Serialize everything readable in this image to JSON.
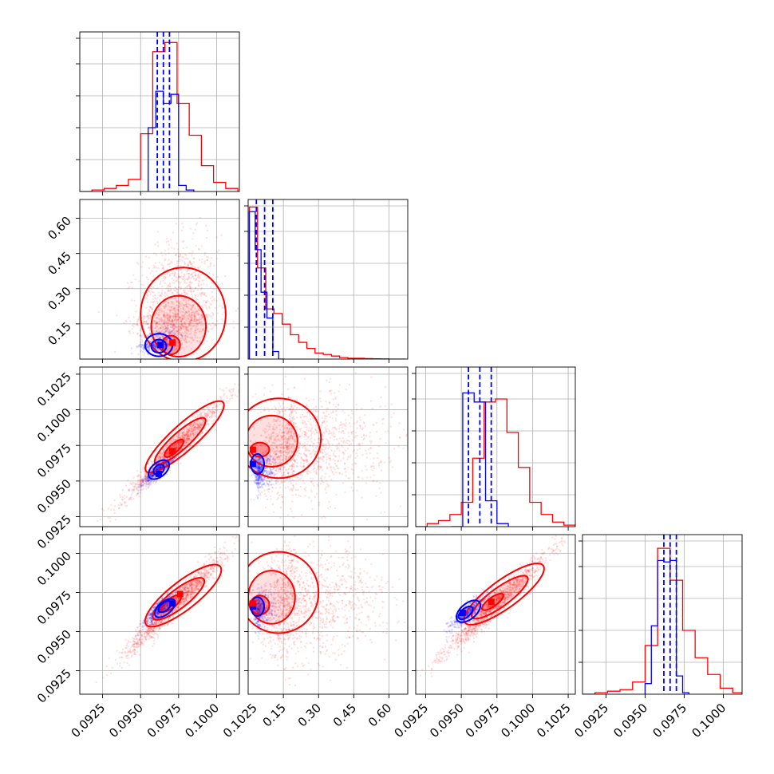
{
  "chart_data": {
    "type": "corner",
    "series_colors": [
      "#0000ff",
      "#ff0000"
    ],
    "grid": true,
    "parameters": [
      {
        "range": [
          0.091,
          0.1015
        ],
        "ticks": [
          0.0925,
          0.095,
          0.0975,
          0.1
        ],
        "tick_labels": [
          "0.0925",
          "0.0950",
          "0.0975",
          "0.1000"
        ]
      },
      {
        "range": [
          0.0,
          0.68
        ],
        "ticks": [
          0.15,
          0.3,
          0.45,
          0.6
        ],
        "tick_labels": [
          "0.15",
          "0.30",
          "0.45",
          "0.60"
        ]
      },
      {
        "range": [
          0.0918,
          0.103
        ],
        "ticks": [
          0.0925,
          0.095,
          0.0975,
          0.1,
          0.1025
        ],
        "tick_labels": [
          "0.0925",
          "0.0950",
          "0.0975",
          "0.1000",
          "0.1025"
        ]
      },
      {
        "range": [
          0.091,
          0.1012
        ],
        "ticks": [
          0.0925,
          0.095,
          0.0975,
          0.1
        ],
        "tick_labels": [
          "0.0925",
          "0.0950",
          "0.0975",
          "0.1000"
        ]
      }
    ],
    "bottom_axis_ticks": [
      {
        "ticks": [
          0.0925,
          0.095,
          0.0975,
          0.1,
          0.1025
        ],
        "tick_labels": [
          "0.0925",
          "0.0950",
          "0.0975",
          "0.1000",
          "0.1025"
        ]
      },
      {
        "ticks": [
          0.15,
          0.3,
          0.45,
          0.6
        ],
        "tick_labels": [
          "0.15",
          "0.30",
          "0.45",
          "0.60"
        ]
      },
      {
        "ticks": [
          0.0925,
          0.095,
          0.0975,
          0.1,
          0.1025
        ],
        "tick_labels": [
          "0.0925",
          "0.0950",
          "0.0975",
          "0.1000",
          "0.1025"
        ]
      },
      {
        "ticks": [
          0.0925,
          0.095,
          0.0975,
          0.1
        ],
        "tick_labels": [
          "0.0925",
          "0.0950",
          "0.0975",
          "0.1000"
        ]
      }
    ],
    "histograms": [
      {
        "param": 0,
        "blue": {
          "edges": [
            0.0955,
            0.096,
            0.0965,
            0.097,
            0.0975,
            0.098,
            0.0985
          ],
          "counts": [
            0.42,
            0.66,
            0.58,
            0.64,
            0.04,
            0.01
          ]
        },
        "red": {
          "edges": [
            0.091,
            0.0918,
            0.0926,
            0.0934,
            0.0942,
            0.095,
            0.0958,
            0.0966,
            0.0974,
            0.0982,
            0.099,
            0.0998,
            0.1006,
            0.1014
          ],
          "counts": [
            0.0,
            0.01,
            0.02,
            0.04,
            0.08,
            0.38,
            0.92,
            0.98,
            0.58,
            0.37,
            0.17,
            0.06,
            0.02
          ]
        },
        "blue_quantiles": [
          0.0961,
          0.0965,
          0.0969
        ],
        "ymax": 1.0
      },
      {
        "param": 1,
        "blue": {
          "edges": [
            0.005,
            0.03,
            0.055,
            0.08,
            0.105,
            0.13,
            0.155
          ],
          "counts": [
            0.97,
            0.72,
            0.44,
            0.27,
            0.05,
            0.0
          ]
        },
        "red": {
          "edges": [
            0.005,
            0.04,
            0.075,
            0.11,
            0.145,
            0.18,
            0.215,
            0.25,
            0.285,
            0.32,
            0.355,
            0.39,
            0.425,
            0.46,
            0.495,
            0.53,
            0.565,
            0.6,
            0.635,
            0.67
          ],
          "counts": [
            1.0,
            0.6,
            0.33,
            0.3,
            0.23,
            0.16,
            0.11,
            0.07,
            0.04,
            0.03,
            0.02,
            0.01,
            0.005,
            0.005,
            0.003,
            0.002,
            0.001,
            0.0,
            0.0
          ]
        },
        "blue_quantiles": [
          0.035,
          0.07,
          0.105
        ],
        "ymax": 1.0
      },
      {
        "param": 2,
        "blue": {
          "edges": [
            0.0943,
            0.0951,
            0.0959,
            0.0967,
            0.0975,
            0.0983
          ],
          "counts": [
            0.0,
            0.88,
            0.82,
            0.17,
            0.02
          ]
        },
        "red": {
          "edges": [
            0.0918,
            0.0926,
            0.0934,
            0.0942,
            0.095,
            0.0958,
            0.0966,
            0.0974,
            0.0982,
            0.099,
            0.0998,
            0.1006,
            0.1014,
            0.1022,
            0.103
          ],
          "counts": [
            0.0,
            0.02,
            0.04,
            0.08,
            0.16,
            0.45,
            0.82,
            0.84,
            0.62,
            0.39,
            0.16,
            0.08,
            0.03,
            0.01
          ]
        },
        "blue_quantiles": [
          0.0955,
          0.0963,
          0.0971
        ],
        "ymax": 1.0
      },
      {
        "param": 3,
        "blue": {
          "edges": [
            0.095,
            0.0954,
            0.0958,
            0.0962,
            0.0966,
            0.097,
            0.0974,
            0.0978
          ],
          "counts": [
            0.07,
            0.45,
            0.88,
            0.87,
            0.88,
            0.12,
            0.01
          ]
        },
        "red": {
          "edges": [
            0.091,
            0.0918,
            0.0926,
            0.0934,
            0.0942,
            0.095,
            0.0958,
            0.0966,
            0.0974,
            0.0982,
            0.099,
            0.0998,
            0.1006,
            0.1012
          ],
          "counts": [
            0.0,
            0.01,
            0.02,
            0.03,
            0.08,
            0.32,
            0.96,
            0.75,
            0.42,
            0.24,
            0.13,
            0.04,
            0.01
          ]
        },
        "blue_quantiles": [
          0.0962,
          0.0966,
          0.097
        ],
        "ymax": 1.0
      }
    ],
    "scatter_panels": [
      {
        "x_param": 0,
        "y_param": 1,
        "blue": {
          "mean": [
            0.0962,
            0.065
          ],
          "sd": [
            0.0006,
            0.025
          ],
          "corr": 0.35,
          "n": 500
        },
        "red": {
          "mean": [
            0.0975,
            0.19
          ],
          "sd": [
            0.0013,
            0.11
          ],
          "corr": 0.1,
          "n": 1400
        },
        "contours": {
          "blue": [
            {
              "center": [
                0.0962,
                0.055
              ],
              "radius": [
                0.0005,
                0.028
              ],
              "angle": 0
            },
            {
              "center": [
                0.0962,
                0.06
              ],
              "radius": [
                0.0009,
                0.048
              ],
              "angle": 0
            }
          ],
          "red": [
            {
              "center": [
                0.097,
                0.06
              ],
              "radius": [
                0.0006,
                0.04
              ],
              "angle": 0
            },
            {
              "center": [
                0.0975,
                0.14
              ],
              "radius": [
                0.0018,
                0.13
              ],
              "angle": 0
            },
            {
              "center": [
                0.0978,
                0.19
              ],
              "radius": [
                0.0028,
                0.2
              ],
              "angle": 0
            }
          ]
        },
        "blue_peak": [
          0.0963,
          0.06
        ],
        "red_peak": [
          0.0971,
          0.07
        ]
      },
      {
        "x_param": 0,
        "y_param": 2,
        "blue": {
          "mean": [
            0.0962,
            0.0958
          ],
          "sd": [
            0.0005,
            0.0005
          ],
          "corr": 0.9,
          "n": 600
        },
        "red": {
          "mean": [
            0.0973,
            0.0973
          ],
          "sd": [
            0.0016,
            0.0017
          ],
          "corr": 0.97,
          "n": 1400
        },
        "contours": {
          "blue": [
            {
              "center": [
                0.0962,
                0.0958
              ],
              "radius": [
                0.0004,
                0.0003
              ],
              "angle": 40
            },
            {
              "center": [
                0.0962,
                0.0958
              ],
              "radius": [
                0.0008,
                0.0005
              ],
              "angle": 40
            }
          ],
          "red": [
            {
              "center": [
                0.0972,
                0.0973
              ],
              "radius": [
                0.0008,
                0.0003
              ],
              "angle": 42
            },
            {
              "center": [
                0.0976,
                0.0978
              ],
              "radius": [
                0.0022,
                0.0006
              ],
              "angle": 42
            },
            {
              "center": [
                0.0979,
                0.0981
              ],
              "radius": [
                0.0034,
                0.0009
              ],
              "angle": 42
            }
          ]
        },
        "blue_peak": [
          0.0962,
          0.0955
        ],
        "red_peak": [
          0.0971,
          0.0971
        ]
      },
      {
        "x_param": 1,
        "y_param": 2,
        "blue": {
          "mean": [
            0.05,
            0.0957
          ],
          "sd": [
            0.02,
            0.0006
          ],
          "corr": 0.1,
          "n": 500
        },
        "red": {
          "mean": [
            0.2,
            0.0975
          ],
          "sd": [
            0.12,
            0.0018
          ],
          "corr": 0.05,
          "n": 1400
        },
        "contours": {
          "blue": [
            {
              "center": [
                0.04,
                0.0962
              ],
              "radius": [
                0.028,
                0.0007
              ],
              "angle": 0
            }
          ],
          "red": [
            {
              "center": [
                0.05,
                0.0972
              ],
              "radius": [
                0.04,
                0.0005
              ],
              "angle": 0
            },
            {
              "center": [
                0.1,
                0.0978
              ],
              "radius": [
                0.11,
                0.0018
              ],
              "angle": 0
            },
            {
              "center": [
                0.13,
                0.098
              ],
              "radius": [
                0.18,
                0.0028
              ],
              "angle": 0
            }
          ]
        },
        "blue_peak": [
          0.02,
          0.0962
        ],
        "red_peak": [
          0.02,
          0.0972
        ]
      },
      {
        "x_param": 0,
        "y_param": 3,
        "blue": {
          "mean": [
            0.0963,
            0.0965
          ],
          "sd": [
            0.0005,
            0.0005
          ],
          "corr": 0.85,
          "n": 600
        },
        "red": {
          "mean": [
            0.0973,
            0.0968
          ],
          "sd": [
            0.0016,
            0.0016
          ],
          "corr": 0.97,
          "n": 1400
        },
        "contours": {
          "blue": [
            {
              "center": [
                0.0966,
                0.0966
              ],
              "radius": [
                0.0005,
                0.00025
              ],
              "angle": 40
            },
            {
              "center": [
                0.0966,
                0.0965
              ],
              "radius": [
                0.0008,
                0.0004
              ],
              "angle": 40
            }
          ],
          "red": [
            {
              "center": [
                0.097,
                0.0968
              ],
              "radius": [
                0.0008,
                0.0003
              ],
              "angle": 38
            },
            {
              "center": [
                0.0975,
                0.0971
              ],
              "radius": [
                0.0021,
                0.0006
              ],
              "angle": 38
            },
            {
              "center": [
                0.0978,
                0.0973
              ],
              "radius": [
                0.0031,
                0.0009
              ],
              "angle": 38
            }
          ]
        },
        "blue_peak": [
          0.0971,
          0.0968
        ],
        "red_peak": [
          0.0976,
          0.0974
        ]
      },
      {
        "x_param": 1,
        "y_param": 3,
        "blue": {
          "mean": [
            0.05,
            0.0964
          ],
          "sd": [
            0.02,
            0.0006
          ],
          "corr": 0.1,
          "n": 500
        },
        "red": {
          "mean": [
            0.2,
            0.0968
          ],
          "sd": [
            0.12,
            0.0017
          ],
          "corr": 0.05,
          "n": 1400
        },
        "contours": {
          "blue": [
            {
              "center": [
                0.04,
                0.0966
              ],
              "radius": [
                0.028,
                0.0006
              ],
              "angle": 0
            }
          ],
          "red": [
            {
              "center": [
                0.05,
                0.0967
              ],
              "radius": [
                0.04,
                0.0006
              ],
              "angle": 0
            },
            {
              "center": [
                0.1,
                0.0972
              ],
              "radius": [
                0.1,
                0.0017
              ],
              "angle": 0
            },
            {
              "center": [
                0.13,
                0.0975
              ],
              "radius": [
                0.17,
                0.0026
              ],
              "angle": 0
            }
          ]
        },
        "blue_peak": [
          0.02,
          0.0966
        ],
        "red_peak": [
          0.02,
          0.0968
        ]
      },
      {
        "x_param": 2,
        "y_param": 3,
        "blue": {
          "mean": [
            0.0955,
            0.0963
          ],
          "sd": [
            0.0006,
            0.0005
          ],
          "corr": 0.85,
          "n": 600
        },
        "red": {
          "mean": [
            0.0975,
            0.0968
          ],
          "sd": [
            0.0018,
            0.0016
          ],
          "corr": 0.97,
          "n": 1400
        },
        "contours": {
          "blue": [
            {
              "center": [
                0.0953,
                0.0962
              ],
              "radius": [
                0.0006,
                0.00028
              ],
              "angle": 40
            },
            {
              "center": [
                0.0955,
                0.0963
              ],
              "radius": [
                0.001,
                0.0005
              ],
              "angle": 40
            }
          ],
          "red": [
            {
              "center": [
                0.0972,
                0.0969
              ],
              "radius": [
                0.0009,
                0.00028
              ],
              "angle": 36
            },
            {
              "center": [
                0.0977,
                0.0972
              ],
              "radius": [
                0.0024,
                0.0006
              ],
              "angle": 36
            },
            {
              "center": [
                0.098,
                0.0974
              ],
              "radius": [
                0.0034,
                0.0009
              ],
              "angle": 36
            }
          ]
        },
        "blue_peak": [
          0.0951,
          0.0962
        ],
        "red_peak": [
          0.0971,
          0.0969
        ]
      }
    ]
  }
}
